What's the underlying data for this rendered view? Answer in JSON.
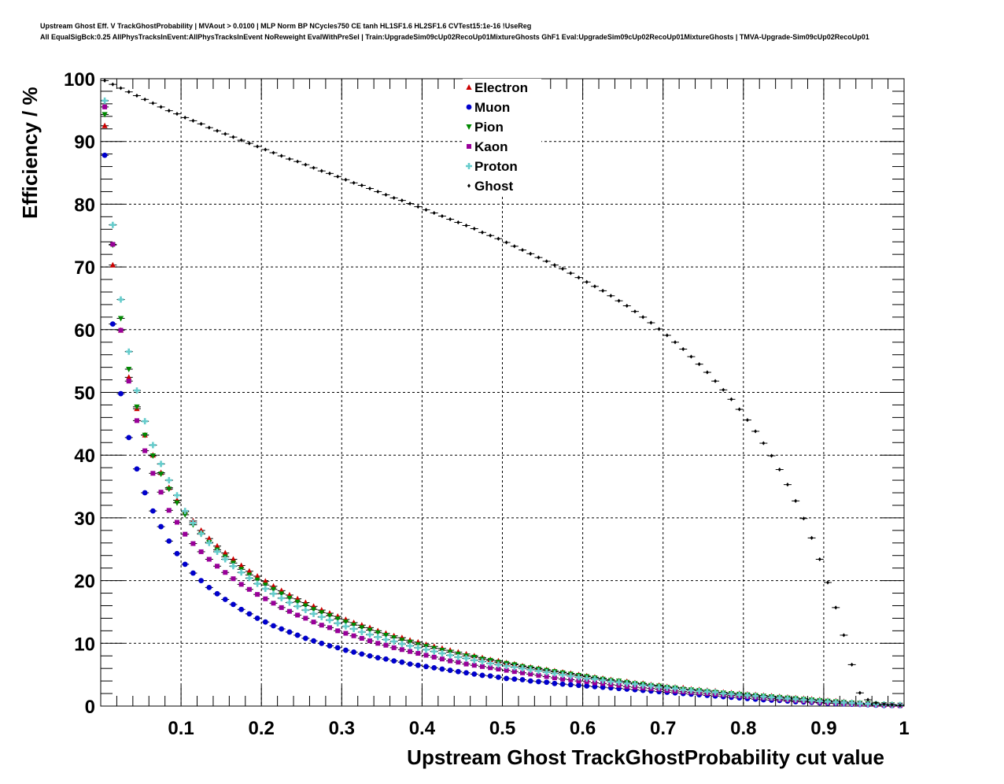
{
  "title": {
    "line1": "Upstream Ghost Eff. V TrackGhostProbability | MVAout > 0.0100 | MLP Norm BP NCycles750 CE tanh HL1SF1.6 HL2SF1.6 CVTest15:1e-16 !UseReg",
    "line2": "All EqualSigBck:0.25 AllPhysTracksInEvent:AllPhysTracksInEvent NoReweight EvalWithPreSel | Train:UpgradeSim09cUp02RecoUp01MixtureGhosts GhF1 Eval:UpgradeSim09cUp02RecoUp01MixtureGhosts | TMVA-Upgrade-Sim09cUp02RecoUp01"
  },
  "chart_data": {
    "type": "scatter",
    "xlabel": "Upstream Ghost TrackGhostProbability cut value",
    "ylabel": "Efficiency / %",
    "xlim": [
      0,
      1
    ],
    "ylim": [
      0,
      100
    ],
    "x_ticks": [
      "0.1",
      "0.2",
      "0.3",
      "0.4",
      "0.5",
      "0.6",
      "0.7",
      "0.8",
      "0.9",
      "1"
    ],
    "y_ticks": [
      "0",
      "10",
      "20",
      "30",
      "40",
      "50",
      "60",
      "70",
      "80",
      "90",
      "100"
    ],
    "grid": true,
    "legend_position": "top-center",
    "x": [
      0.005,
      0.015,
      0.025,
      0.035,
      0.045,
      0.055,
      0.065,
      0.075,
      0.085,
      0.095,
      0.105,
      0.115,
      0.125,
      0.135,
      0.145,
      0.155,
      0.165,
      0.175,
      0.185,
      0.195,
      0.205,
      0.215,
      0.225,
      0.235,
      0.245,
      0.255,
      0.265,
      0.275,
      0.285,
      0.295,
      0.305,
      0.315,
      0.325,
      0.335,
      0.345,
      0.355,
      0.365,
      0.375,
      0.385,
      0.395,
      0.405,
      0.415,
      0.425,
      0.435,
      0.445,
      0.455,
      0.465,
      0.475,
      0.485,
      0.495,
      0.505,
      0.515,
      0.525,
      0.535,
      0.545,
      0.555,
      0.565,
      0.575,
      0.585,
      0.595,
      0.605,
      0.615,
      0.625,
      0.635,
      0.645,
      0.655,
      0.665,
      0.675,
      0.685,
      0.695,
      0.705,
      0.715,
      0.725,
      0.735,
      0.745,
      0.755,
      0.765,
      0.775,
      0.785,
      0.795,
      0.805,
      0.815,
      0.825,
      0.835,
      0.845,
      0.855,
      0.865,
      0.875,
      0.885,
      0.895,
      0.905,
      0.915,
      0.925,
      0.935,
      0.945,
      0.955,
      0.965,
      0.975,
      0.985,
      0.995
    ],
    "series": [
      {
        "name": "Electron",
        "color": "#cc0000",
        "marker": "triangle-up",
        "values": [
          92.5,
          70.3,
          59.9,
          52.4,
          47.4,
          43.2,
          40.0,
          37.2,
          34.8,
          32.8,
          31.0,
          29.5,
          28.0,
          26.7,
          25.5,
          24.4,
          23.4,
          22.4,
          21.5,
          20.7,
          19.9,
          19.1,
          18.4,
          17.7,
          17.1,
          16.5,
          15.9,
          15.3,
          14.8,
          14.3,
          13.8,
          13.3,
          12.9,
          12.5,
          12.0,
          11.6,
          11.2,
          10.9,
          10.5,
          10.2,
          9.8,
          9.5,
          9.2,
          8.9,
          8.6,
          8.3,
          8.0,
          7.7,
          7.4,
          7.2,
          6.9,
          6.7,
          6.4,
          6.2,
          6.0,
          5.8,
          5.6,
          5.4,
          5.2,
          5.0,
          4.8,
          4.6,
          4.4,
          4.2,
          4.0,
          3.9,
          3.7,
          3.6,
          3.4,
          3.3,
          3.1,
          3.0,
          2.9,
          2.7,
          2.6,
          2.5,
          2.4,
          2.2,
          2.1,
          2.0,
          1.9,
          1.8,
          1.7,
          1.6,
          1.5,
          1.4,
          1.3,
          1.2,
          1.1,
          1.0,
          0.9,
          0.8,
          0.7,
          0.6,
          0.5,
          0.4,
          0.35,
          0.3,
          0.25,
          0.2
        ]
      },
      {
        "name": "Muon",
        "color": "#0000cc",
        "marker": "circle",
        "values": [
          87.8,
          60.9,
          49.8,
          42.8,
          37.8,
          34.0,
          31.1,
          28.6,
          26.3,
          24.3,
          22.6,
          21.2,
          20.0,
          18.9,
          17.9,
          17.0,
          16.2,
          15.4,
          14.7,
          14.0,
          13.4,
          12.8,
          12.3,
          11.8,
          11.3,
          10.8,
          10.4,
          10.0,
          9.6,
          9.3,
          8.9,
          8.6,
          8.3,
          8.0,
          7.7,
          7.5,
          7.2,
          7.0,
          6.7,
          6.5,
          6.3,
          6.1,
          5.9,
          5.7,
          5.5,
          5.3,
          5.1,
          4.9,
          4.8,
          4.6,
          4.4,
          4.3,
          4.2,
          4.0,
          3.9,
          3.8,
          3.6,
          3.5,
          3.4,
          3.3,
          3.2,
          3.1,
          3.0,
          2.9,
          2.8,
          2.7,
          2.6,
          2.5,
          2.4,
          2.3,
          2.2,
          2.1,
          2.0,
          1.9,
          1.8,
          1.7,
          1.6,
          1.5,
          1.4,
          1.3,
          1.2,
          1.1,
          1.0,
          0.95,
          0.9,
          0.8,
          0.7,
          0.65,
          0.6,
          0.5,
          0.45,
          0.4,
          0.35,
          0.3,
          0.25,
          0.2,
          0.15,
          0.1,
          0.08,
          0.05
        ]
      },
      {
        "name": "Pion",
        "color": "#008800",
        "marker": "triangle-down",
        "values": [
          94.3,
          73.5,
          61.8,
          53.7,
          47.7,
          43.2,
          39.9,
          37.0,
          34.6,
          32.4,
          30.5,
          28.9,
          27.4,
          26.1,
          24.9,
          23.8,
          22.8,
          21.8,
          20.9,
          20.1,
          19.3,
          18.6,
          17.9,
          17.2,
          16.6,
          16.0,
          15.4,
          14.9,
          14.4,
          13.9,
          13.4,
          12.9,
          12.5,
          12.1,
          11.7,
          11.3,
          10.9,
          10.5,
          10.2,
          9.8,
          9.5,
          9.2,
          8.9,
          8.6,
          8.3,
          8.0,
          7.8,
          7.5,
          7.3,
          7.0,
          6.8,
          6.6,
          6.3,
          6.1,
          5.9,
          5.7,
          5.5,
          5.3,
          5.1,
          4.9,
          4.7,
          4.5,
          4.3,
          4.1,
          4.0,
          3.8,
          3.6,
          3.5,
          3.3,
          3.2,
          3.0,
          2.9,
          2.7,
          2.6,
          2.5,
          2.3,
          2.2,
          2.1,
          2.0,
          1.9,
          1.8,
          1.7,
          1.6,
          1.5,
          1.4,
          1.3,
          1.2,
          1.1,
          1.0,
          0.9,
          0.8,
          0.7,
          0.6,
          0.5,
          0.45,
          0.4,
          0.3,
          0.25,
          0.2,
          0.15
        ]
      },
      {
        "name": "Kaon",
        "color": "#990099",
        "marker": "square",
        "values": [
          95.5,
          73.6,
          59.9,
          51.8,
          45.5,
          40.7,
          37.1,
          34.1,
          31.2,
          29.3,
          27.4,
          25.9,
          24.6,
          23.4,
          22.3,
          21.3,
          20.3,
          19.4,
          18.6,
          17.8,
          17.1,
          16.4,
          15.7,
          15.1,
          14.5,
          14.0,
          13.4,
          12.9,
          12.5,
          12.0,
          11.6,
          11.2,
          10.8,
          10.4,
          10.0,
          9.7,
          9.3,
          9.0,
          8.7,
          8.4,
          8.1,
          7.8,
          7.5,
          7.2,
          7.0,
          6.7,
          6.5,
          6.3,
          6.1,
          5.9,
          5.7,
          5.5,
          5.3,
          5.1,
          4.9,
          4.7,
          4.5,
          4.3,
          4.2,
          4.0,
          3.9,
          3.7,
          3.6,
          3.4,
          3.3,
          3.1,
          3.0,
          2.9,
          2.8,
          2.7,
          2.5,
          2.4,
          2.3,
          2.2,
          2.1,
          2.0,
          1.9,
          1.8,
          1.7,
          1.6,
          1.5,
          1.4,
          1.3,
          1.2,
          1.1,
          1.0,
          0.9,
          0.8,
          0.7,
          0.6,
          0.5,
          0.45,
          0.4,
          0.35,
          0.3,
          0.25,
          0.2,
          0.15,
          0.1,
          0.08
        ]
      },
      {
        "name": "Proton",
        "color": "#66cccc",
        "marker": "cross",
        "values": [
          96.5,
          76.7,
          64.8,
          56.5,
          50.3,
          45.4,
          41.6,
          38.6,
          36.0,
          33.6,
          31.1,
          29.2,
          27.5,
          26.0,
          24.6,
          23.4,
          22.3,
          21.3,
          20.4,
          19.5,
          18.7,
          17.9,
          17.2,
          16.5,
          15.9,
          15.3,
          14.7,
          14.2,
          13.7,
          13.2,
          12.7,
          12.3,
          11.8,
          11.4,
          11.0,
          10.6,
          10.3,
          9.9,
          9.6,
          9.3,
          9.0,
          8.7,
          8.4,
          8.1,
          7.8,
          7.6,
          7.3,
          7.1,
          6.8,
          6.6,
          6.4,
          6.2,
          6.0,
          5.8,
          5.6,
          5.4,
          5.2,
          5.0,
          4.8,
          4.6,
          4.4,
          4.3,
          4.1,
          3.9,
          3.8,
          3.6,
          3.5,
          3.3,
          3.2,
          3.0,
          2.9,
          2.8,
          2.6,
          2.5,
          2.4,
          2.3,
          2.2,
          2.0,
          1.9,
          1.8,
          1.7,
          1.6,
          1.5,
          1.4,
          1.3,
          1.2,
          1.1,
          1.0,
          0.9,
          0.8,
          0.7,
          0.6,
          0.55,
          0.5,
          0.4,
          0.35,
          0.3,
          0.25,
          0.2,
          0.15
        ]
      },
      {
        "name": "Ghost",
        "color": "#000000",
        "marker": "diamond",
        "values": [
          99.7,
          99.1,
          98.5,
          97.9,
          97.3,
          96.7,
          96.1,
          95.5,
          94.9,
          94.4,
          93.8,
          93.3,
          92.8,
          92.2,
          91.7,
          91.2,
          90.7,
          90.2,
          89.7,
          89.2,
          88.7,
          88.2,
          87.7,
          87.2,
          86.8,
          86.3,
          85.8,
          85.3,
          84.9,
          84.4,
          83.9,
          83.4,
          83.0,
          82.5,
          82.0,
          81.5,
          81.0,
          80.6,
          80.1,
          79.6,
          79.1,
          78.6,
          78.1,
          77.6,
          77.1,
          76.6,
          76.1,
          75.5,
          75.0,
          74.5,
          73.9,
          73.3,
          72.7,
          72.1,
          71.5,
          70.9,
          70.3,
          69.7,
          69.0,
          68.3,
          67.6,
          66.9,
          66.2,
          65.4,
          64.6,
          63.8,
          62.9,
          62.0,
          61.1,
          60.1,
          59.1,
          58.0,
          56.9,
          55.7,
          54.5,
          53.2,
          51.8,
          50.4,
          48.9,
          47.3,
          45.6,
          43.8,
          41.9,
          39.9,
          37.7,
          35.3,
          32.7,
          29.9,
          26.8,
          23.4,
          19.7,
          15.7,
          11.3,
          6.6,
          2.1,
          1.0,
          0.5,
          0.3,
          0.2,
          0.1
        ]
      }
    ]
  }
}
